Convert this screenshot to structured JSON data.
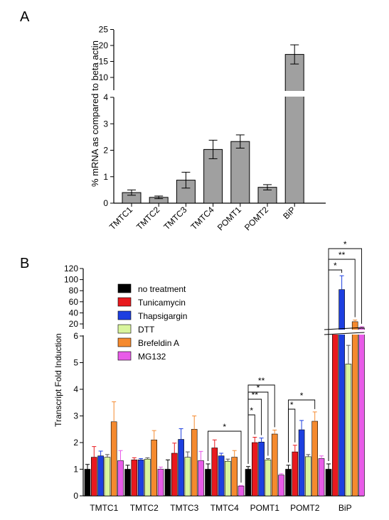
{
  "chart_data": [
    {
      "panel": "A",
      "type": "bar",
      "ylabel": "% mRNA as compared to beta actin",
      "categories": [
        "TMTC1",
        "TMTC2",
        "TMTC3",
        "TMTC4",
        "POMT1",
        "POMT2",
        "BiP"
      ],
      "values": [
        0.4,
        0.22,
        0.87,
        2.03,
        2.33,
        0.6,
        17.2
      ],
      "errors": [
        0.1,
        0.05,
        0.3,
        0.35,
        0.25,
        0.1,
        3.0
      ],
      "bar_color": "#a0a0a0",
      "y_axis_broken": true,
      "lower_ticks": [
        "0",
        "1",
        "2",
        "3",
        "4"
      ],
      "upper_ticks": [
        "10",
        "15",
        "20",
        "25"
      ]
    },
    {
      "panel": "B",
      "type": "bar",
      "ylabel": "Transcript Fold Induction",
      "categories": [
        "TMTC1",
        "TMTC2",
        "TMTC3",
        "TMTC4",
        "POMT1",
        "POMT2",
        "BiP"
      ],
      "series": [
        {
          "name": "no treatment",
          "color": "#000000",
          "values": [
            1.0,
            1.0,
            1.0,
            1.0,
            1.0,
            1.0,
            1.0
          ],
          "errors": [
            0.18,
            0.15,
            0.35,
            0.2,
            0.1,
            0.15,
            0.2
          ]
        },
        {
          "name": "Tunicamycin",
          "color": "#e8191e",
          "values": [
            1.45,
            1.35,
            1.6,
            1.8,
            2.0,
            1.65,
            7.0
          ],
          "errors": [
            0.4,
            0.08,
            0.38,
            0.3,
            0.2,
            0.25,
            1.0
          ]
        },
        {
          "name": "Thapsigargin",
          "color": "#1d3fe0",
          "values": [
            1.5,
            1.35,
            2.12,
            1.5,
            2.02,
            2.48,
            82.0
          ],
          "errors": [
            0.18,
            0.05,
            0.4,
            0.1,
            0.15,
            0.35,
            25.0
          ]
        },
        {
          "name": "DTT",
          "color": "#d9f59d",
          "values": [
            1.45,
            1.38,
            1.45,
            1.3,
            1.35,
            1.47,
            4.95
          ],
          "errors": [
            0.1,
            0.05,
            0.2,
            0.08,
            0.05,
            0.08,
            0.7
          ]
        },
        {
          "name": "Brefeldin A",
          "color": "#f58a2e",
          "values": [
            2.78,
            2.1,
            2.5,
            1.45,
            2.32,
            2.8,
            24.0
          ],
          "errors": [
            0.75,
            0.35,
            0.5,
            0.25,
            0.15,
            0.35,
            3.0
          ]
        },
        {
          "name": "MG132",
          "color": "#e85be8",
          "values": [
            1.32,
            1.0,
            1.32,
            0.37,
            0.78,
            1.4,
            12.0
          ],
          "errors": [
            0.38,
            0.08,
            0.35,
            0.02,
            0.05,
            0.1,
            3.0
          ]
        }
      ],
      "y_axis_broken": true,
      "lower_ticks": [
        "0",
        "1",
        "2",
        "3",
        "4",
        "5",
        "6"
      ],
      "upper_ticks": [
        "20",
        "40",
        "60",
        "80",
        "100",
        "120"
      ],
      "significance": [
        "*",
        "*",
        "**",
        "*",
        "**",
        "*",
        "*",
        "*",
        "**",
        "*"
      ]
    }
  ],
  "panel_labels": {
    "a": "A",
    "b": "B"
  }
}
